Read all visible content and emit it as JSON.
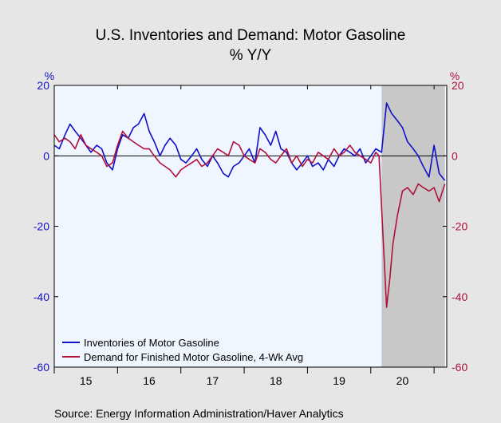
{
  "chart_data": {
    "type": "line",
    "title": "U.S. Inventories and Demand: Motor Gasoline",
    "subtitle": "% Y/Y",
    "left_unit": "%",
    "right_unit": "%",
    "ylim": [
      -60,
      20
    ],
    "y_ticks": [
      "20",
      "0",
      "-20",
      "-40",
      "-60"
    ],
    "y_tick_values": [
      20,
      0,
      -20,
      -40,
      -60
    ],
    "xlim": [
      2015.0,
      2021.2
    ],
    "x_ticks": [
      "15",
      "16",
      "17",
      "18",
      "19",
      "20"
    ],
    "x_tick_positions": [
      2015.5,
      2016.5,
      2017.5,
      2018.5,
      2019.5,
      2020.5
    ],
    "recession": {
      "start": 2020.17,
      "end": 2021.17
    },
    "grid": false,
    "legend_placement": "bottom-left",
    "series": [
      {
        "name": "Inventories of Motor Gasoline",
        "color": "#1010c8",
        "points": [
          [
            2015.0,
            3
          ],
          [
            2015.08,
            2
          ],
          [
            2015.17,
            6
          ],
          [
            2015.25,
            9
          ],
          [
            2015.33,
            7
          ],
          [
            2015.42,
            5
          ],
          [
            2015.5,
            3
          ],
          [
            2015.58,
            1
          ],
          [
            2015.67,
            3
          ],
          [
            2015.75,
            2
          ],
          [
            2015.83,
            -2
          ],
          [
            2015.92,
            -4
          ],
          [
            2016.0,
            2
          ],
          [
            2016.08,
            6
          ],
          [
            2016.17,
            5
          ],
          [
            2016.25,
            8
          ],
          [
            2016.33,
            9
          ],
          [
            2016.42,
            12
          ],
          [
            2016.5,
            7
          ],
          [
            2016.58,
            4
          ],
          [
            2016.67,
            0
          ],
          [
            2016.75,
            3
          ],
          [
            2016.83,
            5
          ],
          [
            2016.92,
            3
          ],
          [
            2017.0,
            -1
          ],
          [
            2017.08,
            -2
          ],
          [
            2017.17,
            0
          ],
          [
            2017.25,
            2
          ],
          [
            2017.33,
            -1
          ],
          [
            2017.42,
            -3
          ],
          [
            2017.5,
            0
          ],
          [
            2017.58,
            -2
          ],
          [
            2017.67,
            -5
          ],
          [
            2017.75,
            -6
          ],
          [
            2017.83,
            -3
          ],
          [
            2017.92,
            -2
          ],
          [
            2018.0,
            0
          ],
          [
            2018.08,
            2
          ],
          [
            2018.17,
            -2
          ],
          [
            2018.25,
            8
          ],
          [
            2018.33,
            6
          ],
          [
            2018.42,
            3
          ],
          [
            2018.5,
            7
          ],
          [
            2018.58,
            2
          ],
          [
            2018.67,
            1
          ],
          [
            2018.75,
            -2
          ],
          [
            2018.83,
            -4
          ],
          [
            2018.92,
            -2
          ],
          [
            2019.0,
            0
          ],
          [
            2019.08,
            -3
          ],
          [
            2019.17,
            -2
          ],
          [
            2019.25,
            -4
          ],
          [
            2019.33,
            -1
          ],
          [
            2019.42,
            -3
          ],
          [
            2019.5,
            0
          ],
          [
            2019.58,
            2
          ],
          [
            2019.67,
            1
          ],
          [
            2019.75,
            0
          ],
          [
            2019.83,
            2
          ],
          [
            2019.92,
            -2
          ],
          [
            2020.0,
            0
          ],
          [
            2020.08,
            2
          ],
          [
            2020.17,
            1
          ],
          [
            2020.25,
            15
          ],
          [
            2020.33,
            12
          ],
          [
            2020.42,
            10
          ],
          [
            2020.5,
            8
          ],
          [
            2020.58,
            4
          ],
          [
            2020.67,
            2
          ],
          [
            2020.75,
            0
          ],
          [
            2020.83,
            -3
          ],
          [
            2020.92,
            -6
          ],
          [
            2021.0,
            3
          ],
          [
            2021.08,
            -5
          ],
          [
            2021.17,
            -7
          ]
        ]
      },
      {
        "name": "Demand for Finished Motor Gasoline, 4-Wk Avg",
        "color": "#b0103a",
        "points": [
          [
            2015.0,
            6
          ],
          [
            2015.08,
            4
          ],
          [
            2015.17,
            5
          ],
          [
            2015.25,
            4
          ],
          [
            2015.33,
            2
          ],
          [
            2015.42,
            6
          ],
          [
            2015.5,
            3
          ],
          [
            2015.58,
            2
          ],
          [
            2015.67,
            1
          ],
          [
            2015.75,
            0
          ],
          [
            2015.83,
            -3
          ],
          [
            2015.92,
            -2
          ],
          [
            2016.0,
            3
          ],
          [
            2016.08,
            7
          ],
          [
            2016.17,
            5
          ],
          [
            2016.25,
            4
          ],
          [
            2016.33,
            3
          ],
          [
            2016.42,
            2
          ],
          [
            2016.5,
            2
          ],
          [
            2016.58,
            0
          ],
          [
            2016.67,
            -2
          ],
          [
            2016.75,
            -3
          ],
          [
            2016.83,
            -4
          ],
          [
            2016.92,
            -6
          ],
          [
            2017.0,
            -4
          ],
          [
            2017.08,
            -3
          ],
          [
            2017.17,
            -2
          ],
          [
            2017.25,
            -1
          ],
          [
            2017.33,
            -3
          ],
          [
            2017.42,
            -2
          ],
          [
            2017.5,
            0
          ],
          [
            2017.58,
            2
          ],
          [
            2017.67,
            1
          ],
          [
            2017.75,
            0
          ],
          [
            2017.83,
            4
          ],
          [
            2017.92,
            3
          ],
          [
            2018.0,
            0
          ],
          [
            2018.08,
            -1
          ],
          [
            2018.17,
            -2
          ],
          [
            2018.25,
            2
          ],
          [
            2018.33,
            1
          ],
          [
            2018.42,
            -1
          ],
          [
            2018.5,
            -2
          ],
          [
            2018.58,
            0
          ],
          [
            2018.67,
            2
          ],
          [
            2018.75,
            -2
          ],
          [
            2018.83,
            0
          ],
          [
            2018.92,
            -3
          ],
          [
            2019.0,
            -1
          ],
          [
            2019.08,
            -2
          ],
          [
            2019.17,
            1
          ],
          [
            2019.25,
            0
          ],
          [
            2019.33,
            -1
          ],
          [
            2019.42,
            2
          ],
          [
            2019.5,
            0
          ],
          [
            2019.58,
            1
          ],
          [
            2019.67,
            3
          ],
          [
            2019.75,
            1
          ],
          [
            2019.83,
            0
          ],
          [
            2019.92,
            -1
          ],
          [
            2020.0,
            -2
          ],
          [
            2020.08,
            1
          ],
          [
            2020.13,
            0
          ],
          [
            2020.2,
            -25
          ],
          [
            2020.25,
            -43
          ],
          [
            2020.3,
            -35
          ],
          [
            2020.35,
            -25
          ],
          [
            2020.42,
            -17
          ],
          [
            2020.5,
            -10
          ],
          [
            2020.58,
            -9
          ],
          [
            2020.67,
            -11
          ],
          [
            2020.75,
            -8
          ],
          [
            2020.83,
            -9
          ],
          [
            2020.92,
            -10
          ],
          [
            2021.0,
            -9
          ],
          [
            2021.08,
            -13
          ],
          [
            2021.17,
            -8
          ]
        ]
      }
    ]
  },
  "source": "Source:  Energy Information Administration/Haver Analytics",
  "colors": {
    "background": "#e6e6e6",
    "plot_background": "#f0f6ff",
    "recession_shade": "#c8c8c8",
    "left_axis": "#1010c8",
    "right_axis": "#b0103a"
  }
}
